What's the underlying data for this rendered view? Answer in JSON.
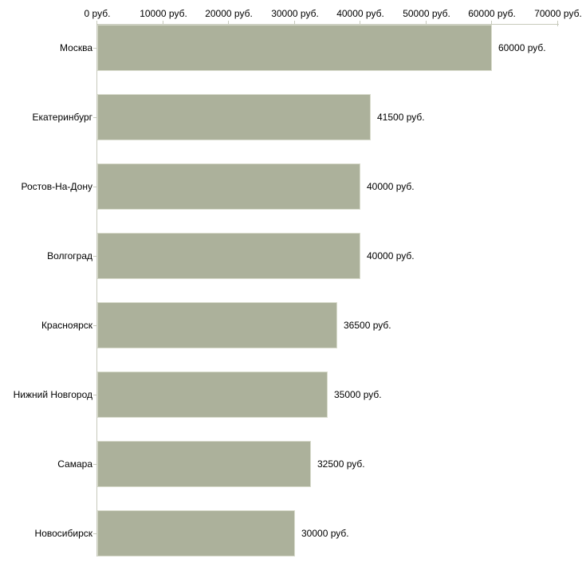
{
  "chart_data": {
    "type": "bar",
    "orientation": "horizontal",
    "title": "",
    "xlabel": "",
    "ylabel": "",
    "categories": [
      "Москва",
      "Екатеринбург",
      "Ростов-На-Дону",
      "Волгоград",
      "Красноярск",
      "Нижний Новгород",
      "Самара",
      "Новосибирск"
    ],
    "values": [
      60000,
      41500,
      40000,
      40000,
      36500,
      35000,
      32500,
      30000
    ],
    "value_labels": [
      "60000 руб.",
      "41500 руб.",
      "40000 руб.",
      "40000 руб.",
      "36500 руб.",
      "35000 руб.",
      "32500 руб.",
      "30000 руб."
    ],
    "x_tick_values": [
      0,
      10000,
      20000,
      30000,
      40000,
      50000,
      60000,
      70000
    ],
    "x_tick_labels": [
      "0 руб.",
      "10000 руб.",
      "20000 руб.",
      "30000 руб.",
      "40000 руб.",
      "50000 руб.",
      "60000 руб.",
      "70000 руб."
    ],
    "xlim": [
      0,
      70000
    ],
    "grid": false,
    "legend": false,
    "axis_position": "top",
    "colors": {
      "bar_fill": "#acb19b",
      "bar_border": "#d8dbcc",
      "axis": "#c7cabc",
      "text": "#000000",
      "background": "#ffffff"
    }
  }
}
